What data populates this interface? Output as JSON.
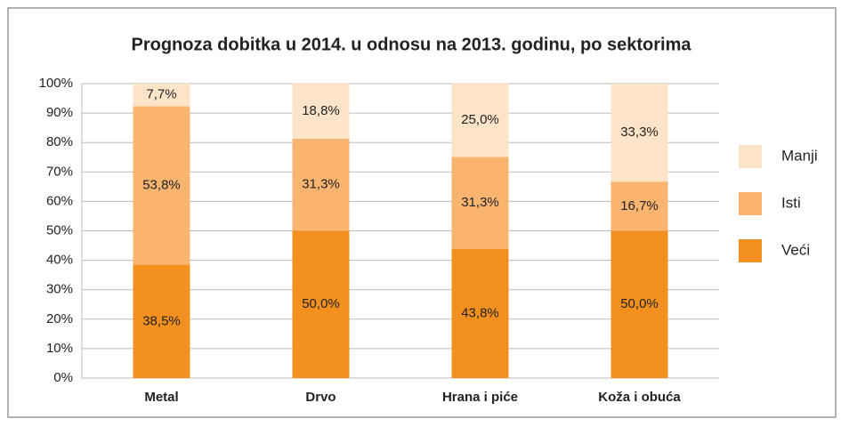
{
  "chart_data": {
    "type": "stacked_bar",
    "title": "Prognoza dobitka u 2014. u odnosu na 2013. godinu, po sektorima",
    "categories": [
      "Metal",
      "Drvo",
      "Hrana i piće",
      "Koža i obuća"
    ],
    "series": [
      {
        "name": "Veći",
        "color": "#f39020",
        "values": [
          38.5,
          50.0,
          43.8,
          50.0
        ],
        "value_labels": [
          "38,5%",
          "50,0%",
          "43,8%",
          "50,0%"
        ]
      },
      {
        "name": "Isti",
        "color": "#f9b470",
        "values": [
          53.8,
          31.3,
          31.3,
          16.7
        ],
        "value_labels": [
          "53,8%",
          "31,3%",
          "31,3%",
          "16,7%"
        ]
      },
      {
        "name": "Manji",
        "color": "#fde4c8",
        "values": [
          7.7,
          18.8,
          25.0,
          33.3
        ],
        "value_labels": [
          "7,7%",
          "18,8%",
          "25,0%",
          "33,3%"
        ]
      }
    ],
    "ylim": [
      0,
      100
    ],
    "yticks": [
      {
        "value": 0,
        "label": "0%"
      },
      {
        "value": 10,
        "label": "10%"
      },
      {
        "value": 20,
        "label": "20%"
      },
      {
        "value": 30,
        "label": "30%"
      },
      {
        "value": 40,
        "label": "40%"
      },
      {
        "value": 50,
        "label": "50%"
      },
      {
        "value": 60,
        "label": "60%"
      },
      {
        "value": 70,
        "label": "70%"
      },
      {
        "value": 80,
        "label": "80%"
      },
      {
        "value": 90,
        "label": "90%"
      },
      {
        "value": 100,
        "label": "100%"
      }
    ],
    "grid": true,
    "legend": "right"
  }
}
